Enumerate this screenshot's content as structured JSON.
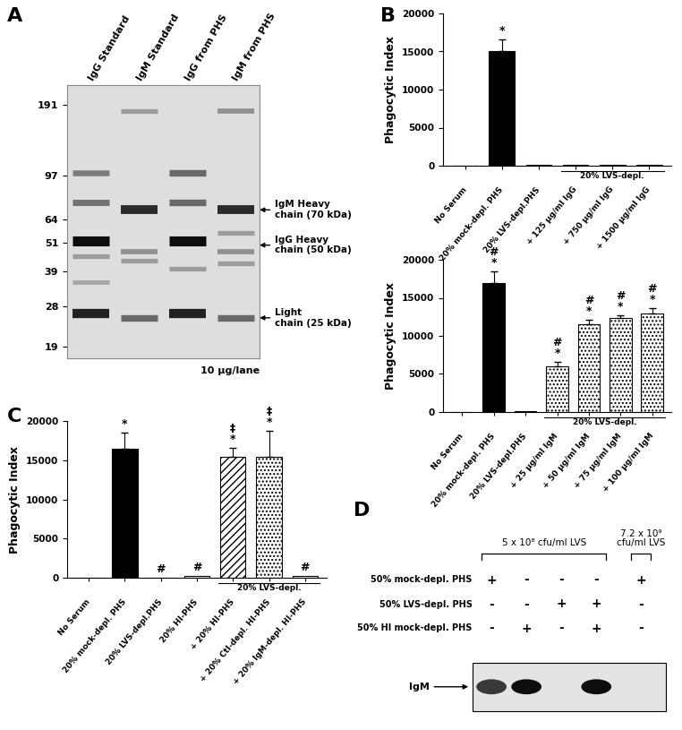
{
  "panel_labels": [
    "A",
    "B",
    "C",
    "D"
  ],
  "gel": {
    "lanes": [
      "IgG Standard",
      "IgM Standard",
      "IgG from PHS",
      "IgM from PHS"
    ],
    "log": "y",
    "ylim": [
      17,
      230
    ],
    "yticks": [
      191,
      97,
      64,
      51,
      39,
      28,
      19
    ],
    "bands": [
      [
        {
          "kDa": 100,
          "intensity": 0.45
        },
        {
          "kDa": 75,
          "intensity": 0.5
        },
        {
          "kDa": 52,
          "intensity": 1.0
        },
        {
          "kDa": 45,
          "intensity": 0.3
        },
        {
          "kDa": 35,
          "intensity": 0.25
        },
        {
          "kDa": 26,
          "intensity": 0.9
        }
      ],
      [
        {
          "kDa": 180,
          "intensity": 0.3
        },
        {
          "kDa": 70,
          "intensity": 0.85
        },
        {
          "kDa": 47,
          "intensity": 0.35
        },
        {
          "kDa": 43,
          "intensity": 0.3
        },
        {
          "kDa": 25,
          "intensity": 0.55
        }
      ],
      [
        {
          "kDa": 100,
          "intensity": 0.55
        },
        {
          "kDa": 75,
          "intensity": 0.55
        },
        {
          "kDa": 52,
          "intensity": 1.0
        },
        {
          "kDa": 40,
          "intensity": 0.3
        },
        {
          "kDa": 26,
          "intensity": 0.9
        }
      ],
      [
        {
          "kDa": 180,
          "intensity": 0.35
        },
        {
          "kDa": 70,
          "intensity": 0.85
        },
        {
          "kDa": 56,
          "intensity": 0.3
        },
        {
          "kDa": 47,
          "intensity": 0.35
        },
        {
          "kDa": 42,
          "intensity": 0.3
        },
        {
          "kDa": 25,
          "intensity": 0.55
        }
      ]
    ],
    "arrows": [
      {
        "label": "IgM Heavy\nchain (70 kDa)",
        "kDa": 70
      },
      {
        "label": "IgG Heavy\nchain (50 kDa)",
        "kDa": 50
      },
      {
        "label": "Light\nchain (25 kDa)",
        "kDa": 25
      }
    ],
    "note": "10 µg/lane"
  },
  "chart_data": [
    {
      "type": "bar",
      "ylabel": "Phagocytic Index",
      "categories": [
        "No Serum",
        "20% mock-depl. PHS",
        "20% LVS-depl.PHS",
        "+ 125 µg/ml IgG",
        "+ 750 µg/ml IgG",
        "+ 1500 µg/ml IgG"
      ],
      "values": [
        0,
        15000,
        60,
        60,
        80,
        100
      ],
      "errors": [
        null,
        1600,
        null,
        null,
        null,
        null
      ],
      "marks": [
        null,
        [
          "*"
        ],
        null,
        null,
        null,
        null
      ],
      "colors": [
        "#ffffff",
        "#000000",
        "#ffffff",
        "#ffffff",
        "#ffffff",
        "#ffffff"
      ],
      "ylim": [
        0,
        20000
      ],
      "yticks": [
        0,
        5000,
        10000,
        15000,
        20000
      ],
      "group": {
        "label": "20% LVS-depl.",
        "from": 3,
        "to": 5
      }
    },
    {
      "type": "bar",
      "ylabel": "Phagocytic Index",
      "categories": [
        "No Serum",
        "20% mock-depl. PHS",
        "20% LVS-depl.PHS",
        "+ 25 µg/ml IgM",
        "+ 50 µg/ml IgM",
        "+ 75 µg/ml IgM",
        "+ 100 µg/ml IgM"
      ],
      "values": [
        0,
        17000,
        60,
        6000,
        11500,
        12300,
        12900
      ],
      "errors": [
        null,
        1500,
        null,
        600,
        600,
        450,
        800
      ],
      "marks": [
        null,
        [
          "#",
          "*"
        ],
        null,
        [
          "#",
          "*"
        ],
        [
          "#",
          "*"
        ],
        [
          "#",
          "*"
        ],
        [
          "#",
          "*"
        ]
      ],
      "colors": [
        "#ffffff",
        "#000000",
        "#ffffff",
        "#ffffff",
        "#ffffff",
        "#ffffff",
        "#ffffff"
      ],
      "ylim": [
        0,
        20000
      ],
      "yticks": [
        0,
        5000,
        10000,
        15000,
        20000
      ],
      "group": {
        "label": "20% LVS-depl.",
        "from": 3,
        "to": 6
      }
    },
    {
      "type": "bar",
      "ylabel": "Phagocytic Index",
      "categories": [
        "No Serum",
        "20% mock-depl. PHS",
        "20% LVS-depl.PHS",
        "20% HI-PHS",
        "+ 20% HI-PHS",
        "+ 20% Ctl-depl. HI-PHS",
        "+ 20% IgM-depl. HI-PHS"
      ],
      "values": [
        0,
        16500,
        50,
        250,
        15400,
        15400,
        200
      ],
      "errors": [
        null,
        2000,
        null,
        null,
        1200,
        3400,
        null
      ],
      "marks": [
        null,
        [
          "*"
        ],
        [
          "#"
        ],
        [
          "#"
        ],
        [
          "‡",
          "*"
        ],
        [
          "‡",
          "*"
        ],
        [
          "#"
        ]
      ],
      "colors": [
        "#ffffff",
        "#000000",
        "#ffffff",
        "#ffffff",
        "#ffffff",
        "#ffffff",
        "#ffffff"
      ],
      "ylim": [
        0,
        20000
      ],
      "yticks": [
        0,
        5000,
        10000,
        15000,
        20000
      ],
      "group": {
        "label": "20% LVS-depl.",
        "from": 4,
        "to": 6
      }
    }
  ],
  "blot": {
    "headers": [
      {
        "label": "5 x 10⁸ cfu/ml LVS",
        "from": 0,
        "to": 3
      },
      {
        "label": "7.2 x 10⁹\ncfu/ml LVS",
        "from": 4,
        "to": 4
      }
    ],
    "rows": [
      {
        "label": "50% mock-depl. PHS",
        "signs": [
          "+",
          "-",
          "-",
          "-",
          "+"
        ]
      },
      {
        "label": "50% LVS-depl. PHS",
        "signs": [
          "-",
          "-",
          "+",
          "+",
          "-"
        ]
      },
      {
        "label": "50% HI mock-depl. PHS",
        "signs": [
          "-",
          "+",
          "-",
          "+",
          "-"
        ]
      }
    ],
    "band_label": "IgM",
    "band_intensity": [
      0.75,
      1.0,
      0,
      1.0,
      0
    ]
  }
}
